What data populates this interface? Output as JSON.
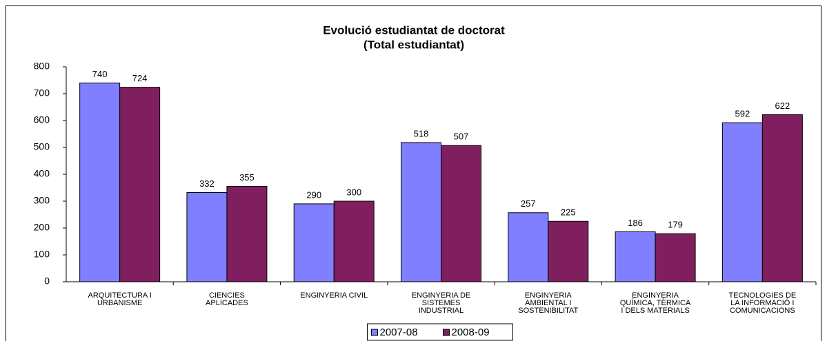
{
  "chart_data": {
    "type": "bar",
    "title": "Evolució estudiantat  de doctorat",
    "subtitle": "(Total estudiantat)",
    "categories": [
      "ARQUITECTURA I\nURBANISME",
      "CIÈNCIES\nAPLICADES",
      "ENGINYERIA CIVIL",
      "ENGINYERIA DE\nSISTEMES\nINDUSTRIAL",
      "ENGINYERIA\nAMBIENTAL I\nSOSTENIBILITAT",
      "ENGINYERIA\nQUÍMICA, TÈRMICA\nI DELS MATERIALS",
      "TECNOLOGIES DE\nLA INFORMACIÓ I\nCOMUNICACIONS"
    ],
    "series": [
      {
        "name": "2007-08",
        "color": "#7f7fff",
        "values": [
          740,
          332,
          290,
          518,
          257,
          186,
          592
        ]
      },
      {
        "name": "2008-09",
        "color": "#7f1f5f",
        "values": [
          724,
          355,
          300,
          507,
          225,
          179,
          622
        ]
      }
    ],
    "ylim": [
      0,
      800
    ],
    "yticks": [
      0,
      100,
      200,
      300,
      400,
      500,
      600,
      700,
      800
    ],
    "grid": false,
    "legend": "bottom"
  }
}
